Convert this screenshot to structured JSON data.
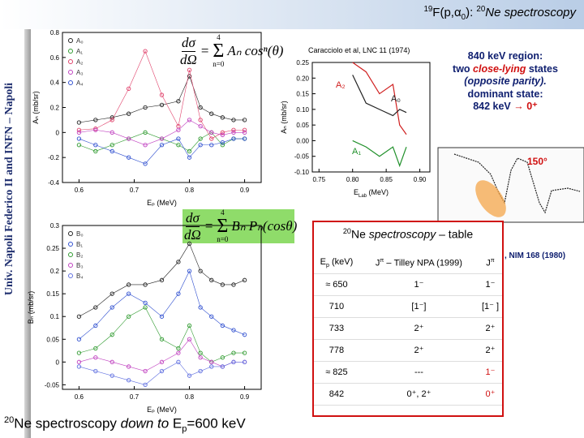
{
  "header": {
    "title": [
      "19",
      "F(p,α",
      "0",
      "): ",
      "20",
      "Ne spectroscopy"
    ]
  },
  "sidebar": "Univ. Napoli Federico II and INFN – Napoli",
  "formula_a": {
    "lhs_num": "dσ",
    "lhs_den": "dΩ",
    "eq": "=",
    "sum_top": "4",
    "sum": "Σ",
    "sum_bottom": "n=0",
    "term": "Aₙ cosⁿ(θ)"
  },
  "formula_b": {
    "lhs_num": "dσ",
    "lhs_den": "dΩ",
    "eq": "=",
    "sum_top": "4",
    "sum": "Σ",
    "sum_bottom": "n=0",
    "term": "Bₙ Pₙ(cosθ)"
  },
  "plot_a": {
    "ylabel": "Aₙ (mb/sr)",
    "xlabel": "Eₚ (MeV)",
    "xlim": [
      0.57,
      0.93
    ],
    "ylim": [
      -0.4,
      0.8
    ],
    "xticks": [
      0.6,
      0.7,
      0.8,
      0.9
    ],
    "yticks": [
      0.8,
      0.6,
      0.4,
      0.2,
      0,
      -0.2,
      -0.4
    ],
    "x": [
      0.6,
      0.63,
      0.66,
      0.69,
      0.72,
      0.75,
      0.78,
      0.8,
      0.82,
      0.84,
      0.86,
      0.88,
      0.9
    ],
    "series": [
      {
        "name": "A₀",
        "color": "#222222",
        "values": [
          0.08,
          0.1,
          0.12,
          0.15,
          0.2,
          0.22,
          0.25,
          0.45,
          0.2,
          0.15,
          0.12,
          0.1,
          0.1
        ]
      },
      {
        "name": "A₁",
        "color": "#2e9a2e",
        "values": [
          -0.1,
          -0.15,
          -0.1,
          -0.05,
          0.0,
          -0.05,
          -0.1,
          -0.15,
          -0.05,
          0.0,
          -0.1,
          -0.05,
          -0.05
        ]
      },
      {
        "name": "A₂",
        "color": "#e0406a",
        "values": [
          0.02,
          0.03,
          0.1,
          0.35,
          0.65,
          0.3,
          0.05,
          0.5,
          0.1,
          -0.05,
          0.0,
          0.02,
          0.02
        ]
      },
      {
        "name": "A₃",
        "color": "#c040c0",
        "values": [
          0.0,
          0.02,
          0.0,
          -0.05,
          -0.1,
          -0.05,
          0.02,
          0.1,
          0.05,
          0.0,
          -0.02,
          0.0,
          0.0
        ]
      },
      {
        "name": "A₄",
        "color": "#3050d0",
        "values": [
          -0.05,
          -0.1,
          -0.15,
          -0.2,
          -0.25,
          -0.1,
          -0.05,
          -0.2,
          -0.1,
          -0.1,
          -0.08,
          -0.05,
          -0.05
        ]
      }
    ]
  },
  "plot_b": {
    "ylabel": "Bₙ (mb/sr)",
    "xlabel": "Eₚ (MeV)",
    "xlim": [
      0.57,
      0.93
    ],
    "ylim": [
      -0.06,
      0.3
    ],
    "xticks": [
      0.6,
      0.7,
      0.8,
      0.9
    ],
    "yticks": [
      0.3,
      0.25,
      0.2,
      0.15,
      0.1,
      0.05,
      0,
      -0.05
    ],
    "x": [
      0.6,
      0.63,
      0.66,
      0.69,
      0.72,
      0.75,
      0.78,
      0.8,
      0.82,
      0.84,
      0.86,
      0.88,
      0.9
    ],
    "series": [
      {
        "name": "B₀",
        "color": "#222222",
        "values": [
          0.1,
          0.12,
          0.15,
          0.17,
          0.17,
          0.18,
          0.22,
          0.26,
          0.2,
          0.18,
          0.17,
          0.17,
          0.18
        ]
      },
      {
        "name": "B₁",
        "color": "#3050d0",
        "values": [
          0.05,
          0.08,
          0.12,
          0.15,
          0.13,
          0.1,
          0.15,
          0.2,
          0.12,
          0.1,
          0.08,
          0.07,
          0.06
        ]
      },
      {
        "name": "B₂",
        "color": "#2e9a2e",
        "values": [
          0.02,
          0.03,
          0.06,
          0.1,
          0.12,
          0.05,
          0.03,
          0.08,
          0.02,
          0.0,
          0.01,
          0.02,
          0.02
        ]
      },
      {
        "name": "B₃",
        "color": "#c040c0",
        "values": [
          0.0,
          0.01,
          0.0,
          -0.01,
          -0.02,
          0.0,
          0.02,
          0.05,
          0.01,
          0.0,
          -0.01,
          0.0,
          0.0
        ]
      },
      {
        "name": "B₄",
        "color": "#6070e0",
        "values": [
          -0.01,
          -0.02,
          -0.03,
          -0.04,
          -0.05,
          -0.02,
          0.0,
          -0.03,
          -0.02,
          -0.01,
          -0.01,
          0.0,
          0.0
        ]
      }
    ]
  },
  "inset": {
    "caption": "Caracciolo et al, LNC 11 (1974)",
    "ylabel": "Aₙ (mb/sr)",
    "xlabel": [
      "E",
      "Lab",
      " (MeV)"
    ],
    "xlim": [
      0.74,
      0.915
    ],
    "ylim": [
      -0.1,
      0.25
    ],
    "xticks": [
      0.75,
      {
        "value": 0.8,
        "label": "0.80"
      },
      0.85,
      {
        "value": 0.9,
        "label": "0.90"
      }
    ],
    "yticks": [
      0.25,
      {
        "value": 0.2,
        "label": "0.20"
      },
      0.15,
      {
        "value": 0.1,
        "label": "0.10"
      },
      0.05,
      {
        "value": 0,
        "label": "0.00"
      },
      -0.05,
      {
        "value": -0.1,
        "label": "-0.10"
      }
    ],
    "x": [
      0.8,
      0.82,
      0.84,
      0.86,
      0.87,
      0.88
    ],
    "series": [
      {
        "name": "A₂",
        "color": "#d02020",
        "values": [
          0.25,
          0.22,
          0.15,
          0.18,
          0.05,
          0.02
        ]
      },
      {
        "name": "A₀",
        "color": "#222222",
        "values": [
          0.21,
          0.12,
          0.1,
          0.08,
          0.1,
          0.09
        ]
      },
      {
        "name": "A₁",
        "color": "#20902a",
        "values": [
          0.0,
          -0.02,
          -0.05,
          -0.02,
          -0.08,
          -0.02
        ]
      }
    ]
  },
  "notes": {
    "line1": "840 keV region:",
    "line2a": "two ",
    "line2b": "close-lying",
    "line2c": " states",
    "line3": "(opposite parity).",
    "line4": "dominant state:",
    "line5a": "842 keV ",
    "line5b": "→",
    "line5c": " 0⁺"
  },
  "spectrum": {
    "angle": "150°",
    "reference": ", NIM 168 (1980)"
  },
  "table": {
    "title": [
      "20",
      "Ne ",
      "spectroscopy",
      " – table"
    ],
    "head": [
      [
        "E",
        "p",
        " (keV)"
      ],
      [
        "J",
        "π",
        " – Tilley NPA (1999)"
      ],
      [
        "J",
        "π"
      ]
    ],
    "rows": [
      [
        "≈ 650",
        "1⁻",
        "1⁻"
      ],
      [
        "710",
        "[1⁻]",
        "[1⁻ ]"
      ],
      [
        "733",
        "2⁺",
        "2⁺"
      ],
      [
        "778",
        "2⁺",
        "2⁺"
      ],
      [
        "≈ 825",
        "---",
        "1⁻"
      ],
      [
        "842",
        "0⁺, 2⁺",
        "0⁺"
      ]
    ]
  },
  "footer": [
    "20",
    "Ne spectroscopy ",
    "down to",
    " E",
    "p",
    "=600 keV"
  ]
}
